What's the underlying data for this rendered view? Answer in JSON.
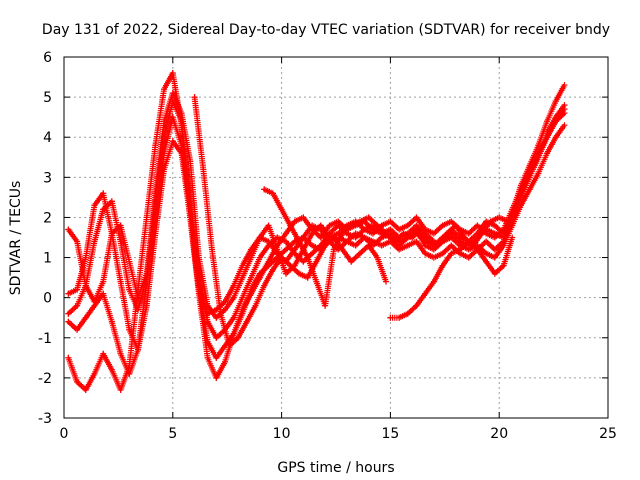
{
  "chart_data": {
    "type": "scatter",
    "title": "Day 131 of 2022, Sidereal Day-to-day VTEC variation (SDTVAR) for receiver bndy",
    "xlabel": "GPS time / hours",
    "ylabel": "SDTVAR / TECUs",
    "xlim": [
      0,
      25
    ],
    "ylim": [
      -3,
      6
    ],
    "xticks": [
      "0",
      "5",
      "10",
      "15",
      "20",
      "25"
    ],
    "yticks": [
      "-3",
      "-2",
      "-1",
      "0",
      "1",
      "2",
      "3",
      "4",
      "5",
      "6"
    ],
    "grid": true,
    "marker": "+",
    "color": "#ff0000",
    "series": [
      {
        "name": "trace-1",
        "x": [
          0.2,
          0.6,
          1.0,
          1.4,
          1.8,
          2.2,
          2.6,
          3.0,
          3.4,
          3.8,
          4.2,
          4.6,
          5.0,
          5.4,
          5.8,
          6.2,
          6.6,
          7.0,
          7.4,
          7.8,
          8.2,
          8.6,
          9.0,
          9.4,
          9.8,
          10.2,
          10.6,
          11.0,
          11.4,
          11.8,
          12.2,
          12.6,
          13.0,
          13.4,
          13.8,
          14.2,
          14.6,
          15.0,
          15.4,
          15.8,
          16.2,
          16.6,
          17.0,
          17.4,
          17.8,
          18.2,
          18.6,
          19.0,
          19.4,
          19.8,
          20.2,
          20.6,
          21.0,
          21.4,
          21.8,
          22.2,
          22.6,
          23.0
        ],
        "y": [
          -1.5,
          -2.1,
          -2.3,
          -1.9,
          -1.4,
          -1.8,
          -2.3,
          -1.7,
          0.2,
          2.0,
          3.8,
          5.2,
          5.6,
          4.3,
          2.0,
          0.1,
          -1.5,
          -2.0,
          -1.6,
          -0.9,
          -0.3,
          0.1,
          0.5,
          0.9,
          1.3,
          1.6,
          1.9,
          2.0,
          1.7,
          1.5,
          1.8,
          1.9,
          1.7,
          1.8,
          1.9,
          1.7,
          1.6,
          1.7,
          1.5,
          1.6,
          1.8,
          1.5,
          1.3,
          1.4,
          1.6,
          1.4,
          1.3,
          1.5,
          1.7,
          1.6,
          1.5,
          2.1,
          2.8,
          3.3,
          3.8,
          4.4,
          4.9,
          5.3
        ]
      },
      {
        "name": "trace-2",
        "x": [
          0.2,
          0.6,
          1.0,
          1.4,
          1.8,
          2.2,
          2.6,
          3.0,
          3.4,
          3.8,
          4.2,
          4.6,
          5.0,
          5.4,
          5.8,
          6.2,
          6.6,
          7.0,
          7.4,
          7.8,
          8.2,
          8.6,
          9.0,
          9.4,
          9.8,
          10.2,
          10.6,
          11.0,
          11.4,
          11.8,
          12.2,
          12.6,
          13.0,
          13.4,
          13.8,
          14.2,
          14.6,
          15.0,
          15.4,
          15.8,
          16.2,
          16.6,
          17.0,
          17.4,
          17.8,
          18.2,
          18.6,
          19.0,
          19.4,
          19.8,
          20.2,
          20.6,
          21.0,
          21.4,
          21.8,
          22.2,
          22.6,
          23.0
        ],
        "y": [
          -0.6,
          -0.8,
          -0.5,
          -0.2,
          0.1,
          -0.6,
          -1.4,
          -1.9,
          -1.3,
          0.4,
          2.4,
          4.0,
          4.9,
          4.4,
          2.4,
          0.3,
          -1.1,
          -1.5,
          -1.2,
          -0.9,
          -0.4,
          0.2,
          0.6,
          0.8,
          1.0,
          1.2,
          1.4,
          1.5,
          1.3,
          1.2,
          1.4,
          1.5,
          1.4,
          1.3,
          1.5,
          1.4,
          1.3,
          1.4,
          1.2,
          1.3,
          1.4,
          1.1,
          1.0,
          1.1,
          1.3,
          1.1,
          1.0,
          1.2,
          1.4,
          1.2,
          1.4,
          1.9,
          2.5,
          3.0,
          3.5,
          4.0,
          4.4,
          4.6
        ]
      },
      {
        "name": "trace-3",
        "x": [
          0.2,
          0.6,
          1.0,
          1.4,
          1.8,
          2.2,
          2.6,
          3.0,
          3.4,
          3.8,
          4.2,
          4.6,
          5.0,
          5.4,
          5.8,
          6.2,
          6.6,
          7.0,
          7.4,
          7.8,
          8.2,
          8.6,
          9.0,
          9.4,
          9.8,
          10.2,
          10.6,
          11.0,
          11.4,
          11.8,
          12.2,
          12.6,
          13.0,
          13.4,
          13.8,
          14.2,
          14.6,
          15.0,
          15.4,
          15.8,
          16.2,
          16.6,
          17.0,
          17.4,
          17.8,
          18.2,
          18.6,
          19.0,
          19.4,
          19.8,
          20.2,
          20.6,
          21.0,
          21.4,
          21.8,
          22.2,
          22.6,
          23.0
        ],
        "y": [
          0.1,
          0.2,
          1.0,
          2.3,
          2.6,
          1.6,
          0.4,
          -0.8,
          -1.3,
          -0.2,
          1.6,
          3.2,
          3.9,
          3.6,
          2.0,
          0.2,
          -0.4,
          -0.3,
          -0.1,
          0.3,
          0.8,
          1.2,
          1.5,
          1.4,
          1.1,
          0.9,
          1.2,
          1.5,
          1.8,
          1.7,
          1.4,
          1.2,
          1.4,
          1.6,
          1.5,
          1.3,
          1.5,
          1.6,
          1.4,
          1.5,
          1.7,
          1.3,
          1.2,
          1.4,
          1.5,
          1.3,
          1.2,
          1.3,
          1.1,
          1.0,
          1.3,
          1.8,
          2.3,
          2.7,
          3.1,
          3.6,
          4.0,
          4.3
        ]
      },
      {
        "name": "trace-4",
        "x": [
          0.2,
          0.6,
          1.0,
          1.4,
          1.8,
          2.2,
          2.6,
          3.0,
          3.4,
          3.8,
          4.2,
          4.6,
          5.0,
          5.4,
          5.8,
          6.2,
          6.6,
          7.0,
          7.4,
          7.8,
          8.2,
          8.6,
          9.0,
          9.4,
          9.8,
          10.2,
          10.6,
          11.0,
          11.4,
          11.8,
          12.2,
          12.6,
          13.0,
          13.4,
          13.8,
          14.2,
          14.6,
          15.0,
          15.4,
          15.8,
          16.2,
          16.6,
          17.0,
          17.4,
          17.8,
          18.2,
          18.6,
          19.0,
          19.4,
          19.8,
          20.2,
          20.6,
          21.0,
          21.4,
          21.8,
          22.2,
          22.6,
          23.0
        ],
        "y": [
          1.7,
          1.4,
          0.3,
          -0.1,
          0.4,
          1.6,
          1.8,
          0.9,
          0.0,
          0.6,
          2.6,
          4.4,
          5.1,
          4.6,
          3.4,
          1.0,
          -0.2,
          -0.5,
          -0.3,
          0.0,
          0.5,
          1.0,
          1.5,
          1.8,
          1.2,
          0.6,
          0.8,
          1.2,
          1.6,
          1.8,
          1.5,
          1.6,
          1.8,
          1.9,
          1.7,
          1.6,
          1.8,
          1.9,
          1.7,
          1.8,
          2.0,
          1.7,
          1.6,
          1.8,
          1.9,
          1.7,
          1.6,
          1.8,
          1.6,
          1.5,
          1.7,
          2.2,
          2.7,
          3.2,
          3.6,
          4.0,
          4.4,
          4.7
        ]
      },
      {
        "name": "trace-5",
        "x": [
          0.2,
          0.6,
          1.0,
          1.4,
          1.8,
          2.2,
          2.6,
          3.0,
          3.4,
          3.8,
          4.2,
          4.6,
          5.0,
          5.4,
          5.8,
          6.2,
          6.6,
          7.0,
          7.4,
          7.8,
          8.2,
          8.6,
          9.0,
          9.4,
          9.8,
          10.2,
          10.6,
          11.0,
          11.4,
          11.8,
          12.2,
          12.6,
          13.0,
          13.4,
          13.8,
          14.2,
          14.6,
          15.0,
          15.4,
          15.8,
          16.2,
          16.6,
          17.0,
          17.4,
          17.8,
          18.2,
          18.6,
          19.0,
          19.4,
          19.8,
          20.2,
          20.6,
          21.0,
          21.4,
          21.8,
          22.2,
          22.6,
          23.0
        ],
        "y": [
          -0.4,
          -0.2,
          0.3,
          1.4,
          2.2,
          2.4,
          1.4,
          0.2,
          -0.3,
          0.5,
          2.0,
          3.6,
          4.5,
          3.8,
          2.3,
          0.5,
          -0.6,
          -1.0,
          -0.8,
          -0.5,
          0.0,
          0.5,
          1.0,
          1.3,
          1.5,
          1.4,
          1.1,
          0.9,
          1.1,
          1.3,
          1.6,
          1.8,
          1.6,
          1.5,
          1.7,
          1.8,
          1.6,
          1.5,
          1.3,
          1.5,
          1.6,
          1.4,
          1.3,
          1.5,
          1.7,
          1.5,
          1.4,
          1.6,
          1.9,
          1.8,
          1.6,
          2.0,
          2.6,
          3.1,
          3.5,
          4.1,
          4.5,
          4.8
        ]
      },
      {
        "name": "trace-6",
        "x": [
          6.0,
          6.4,
          6.8,
          7.2,
          7.6,
          8.0,
          8.4,
          8.8,
          9.2,
          9.6,
          10.0,
          10.4,
          10.8,
          11.2,
          11.6,
          12.0,
          12.4,
          12.8,
          13.2,
          13.6,
          14.0,
          14.4,
          14.8
        ],
        "y": [
          5.0,
          3.2,
          1.2,
          -0.4,
          -1.2,
          -1.0,
          -0.6,
          -0.2,
          0.3,
          0.7,
          1.0,
          0.8,
          0.6,
          0.5,
          0.9,
          1.3,
          1.5,
          1.2,
          0.9,
          1.1,
          1.3,
          1.0,
          0.4
        ]
      },
      {
        "name": "trace-7",
        "x": [
          9.2,
          9.6,
          10.0,
          10.4,
          10.8,
          11.2,
          11.6,
          12.0,
          12.4,
          12.8,
          13.2,
          13.6,
          14.0,
          14.4,
          14.8,
          15.2,
          15.6,
          16.0,
          16.4,
          16.8,
          17.2,
          17.6,
          18.0,
          18.4,
          18.8,
          19.2,
          19.6,
          20.0,
          20.4
        ],
        "y": [
          2.7,
          2.6,
          2.2,
          1.8,
          1.4,
          1.0,
          0.4,
          -0.2,
          1.2,
          1.6,
          1.8,
          1.9,
          2.0,
          1.8,
          1.6,
          1.4,
          1.6,
          1.5,
          1.7,
          1.5,
          1.3,
          1.6,
          1.8,
          1.5,
          1.3,
          1.6,
          1.9,
          2.0,
          1.9
        ]
      },
      {
        "name": "trace-8",
        "x": [
          15.0,
          15.4,
          15.8,
          16.2,
          16.6,
          17.0,
          17.4,
          17.8,
          18.2,
          18.6,
          19.0,
          19.4,
          19.8,
          20.2,
          20.6
        ],
        "y": [
          -0.5,
          -0.5,
          -0.4,
          -0.2,
          0.1,
          0.4,
          0.8,
          1.1,
          1.2,
          1.4,
          1.2,
          0.9,
          0.6,
          0.8,
          1.5
        ]
      }
    ]
  }
}
